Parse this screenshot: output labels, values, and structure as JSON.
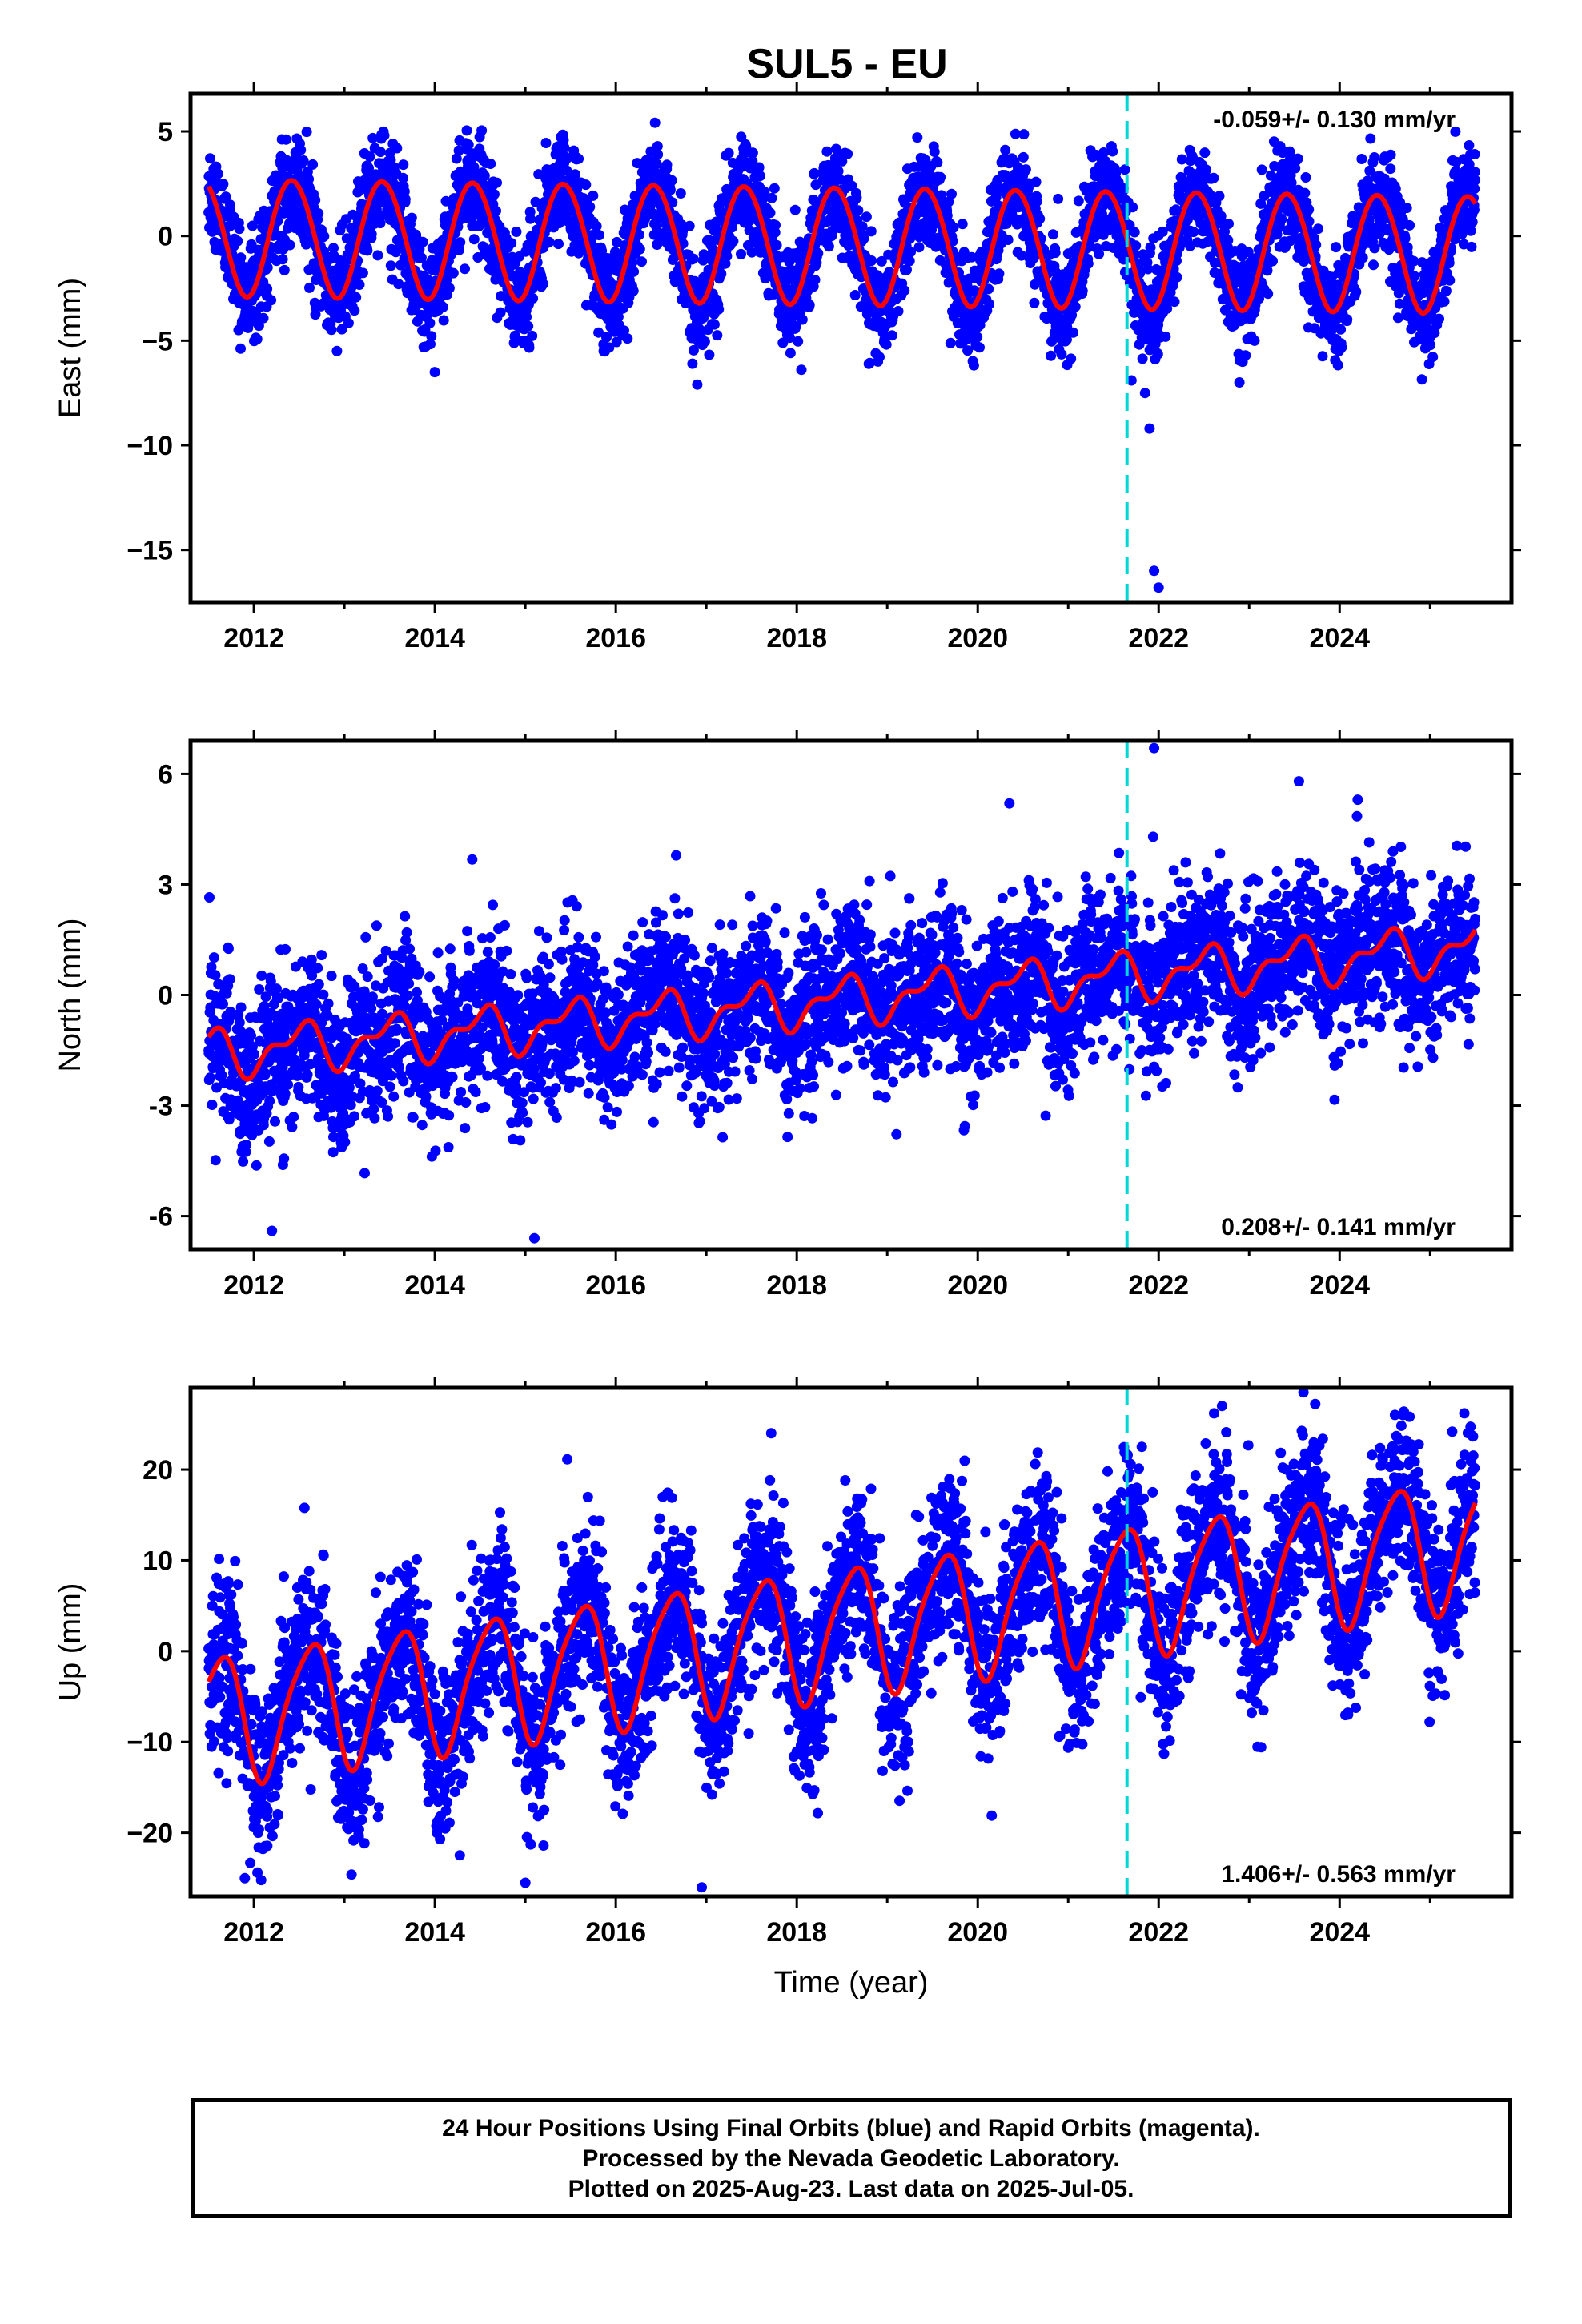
{
  "title": "SUL5 - EU",
  "xlabel": "Time (year)",
  "x_tick_labels": [
    "2012",
    "2014",
    "2016",
    "2018",
    "2020",
    "2022",
    "2024"
  ],
  "colors": {
    "data": "#0000ff",
    "model": "#ff0000",
    "event_line": "#00d8d8",
    "frame": "#000000"
  },
  "footer": {
    "line1": "24 Hour Positions Using Final Orbits (blue) and Rapid Orbits (magenta).",
    "line2": "Processed by the Nevada Geodetic Laboratory.",
    "line3": "Plotted on 2025-Aug-23. Last data on 2025-Jul-05."
  },
  "chart_data": [
    {
      "type": "scatter",
      "component": "east",
      "ylabel": "East (mm)",
      "rate_label": "-0.059+/- 0.130 mm/yr",
      "rate_position": "top-right",
      "xlim": [
        2011.3,
        2025.9
      ],
      "ylim": [
        -17.5,
        6.8
      ],
      "y_ticks": [
        5,
        0,
        -5,
        -10,
        -15
      ],
      "y_tick_labels": [
        "5",
        "0",
        "−5",
        "−10",
        "−15"
      ],
      "equipment_change_year": 2021.65,
      "data_range": [
        2011.5,
        2025.5
      ],
      "model": {
        "offset": 0.0,
        "rate": -0.059,
        "annual_amp": 2.8,
        "annual_peak": 0.42,
        "semiannual_amp": 0.1,
        "semiannual_peak": 0.2
      },
      "scatter_sd": 1.2,
      "outliers": [
        {
          "x": 2021.9,
          "y": -9.2
        },
        {
          "x": 2021.95,
          "y": -16.0
        },
        {
          "x": 2022.0,
          "y": -16.8
        },
        {
          "x": 2021.7,
          "y": -6.9
        },
        {
          "x": 2021.85,
          "y": -7.5
        },
        {
          "x": 2014.0,
          "y": -6.5
        },
        {
          "x": 2016.9,
          "y": -7.1
        }
      ]
    },
    {
      "type": "scatter",
      "component": "north",
      "ylabel": "North (mm)",
      "rate_label": "0.208+/- 0.141 mm/yr",
      "rate_position": "bottom-right",
      "xlim": [
        2011.3,
        2025.9
      ],
      "ylim": [
        -6.9,
        6.9
      ],
      "y_ticks": [
        6,
        3,
        0,
        -3,
        -6
      ],
      "y_tick_labels": [
        "6",
        "3",
        "0",
        "-3",
        "-6"
      ],
      "equipment_change_year": 2021.65,
      "data_range": [
        2011.5,
        2025.5
      ],
      "model": {
        "offset": -1.6,
        "rate": 0.208,
        "annual_amp": 0.55,
        "annual_peak": 0.5,
        "semiannual_amp": 0.3,
        "semiannual_peak": 0.15
      },
      "scatter_sd": 1.05,
      "outliers": [
        {
          "x": 2015.1,
          "y": -6.6
        },
        {
          "x": 2012.2,
          "y": -6.4
        },
        {
          "x": 2021.95,
          "y": 6.7
        },
        {
          "x": 2020.35,
          "y": 5.2
        },
        {
          "x": 2023.55,
          "y": 5.8
        },
        {
          "x": 2024.2,
          "y": 5.3
        }
      ]
    },
    {
      "type": "scatter",
      "component": "up",
      "ylabel": "Up (mm)",
      "rate_label": "1.406+/- 0.563 mm/yr",
      "rate_position": "bottom-right",
      "xlim": [
        2011.3,
        2025.9
      ],
      "ylim": [
        -27,
        29
      ],
      "y_ticks": [
        20,
        10,
        0,
        -10,
        -20
      ],
      "y_tick_labels": [
        "20",
        "10",
        "0",
        "−10",
        "−20"
      ],
      "equipment_change_year": 2021.65,
      "data_range": [
        2011.5,
        2025.5
      ],
      "model": {
        "offset": -7.5,
        "rate": 1.406,
        "annual_amp": 7.0,
        "annual_peak": 0.62,
        "semiannual_amp": 1.2,
        "semiannual_peak": 0.3
      },
      "scatter_sd": 4.6,
      "outliers": [
        {
          "x": 2016.95,
          "y": -26.0
        },
        {
          "x": 2015.0,
          "y": -25.5
        },
        {
          "x": 2011.9,
          "y": -25.0
        },
        {
          "x": 2023.6,
          "y": 28.5
        },
        {
          "x": 2022.7,
          "y": 27.0
        },
        {
          "x": 2024.7,
          "y": 26.0
        }
      ]
    }
  ]
}
